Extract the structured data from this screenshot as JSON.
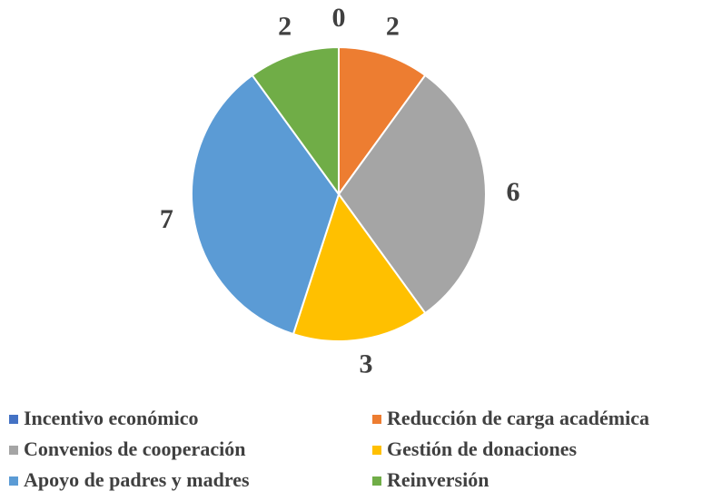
{
  "chart_data": {
    "type": "pie",
    "categories": [
      "Incentivo económico",
      "Reducción de carga académica",
      "Convenios de cooperación",
      "Gestión de donaciones",
      "Apoyo de padres y madres",
      "Reinversión"
    ],
    "values": [
      0,
      2,
      6,
      3,
      7,
      2
    ],
    "colors": [
      "#4472c4",
      "#ed7d31",
      "#a5a5a5",
      "#ffc000",
      "#5b9bd5",
      "#70ad47"
    ],
    "legend": "bottom"
  }
}
